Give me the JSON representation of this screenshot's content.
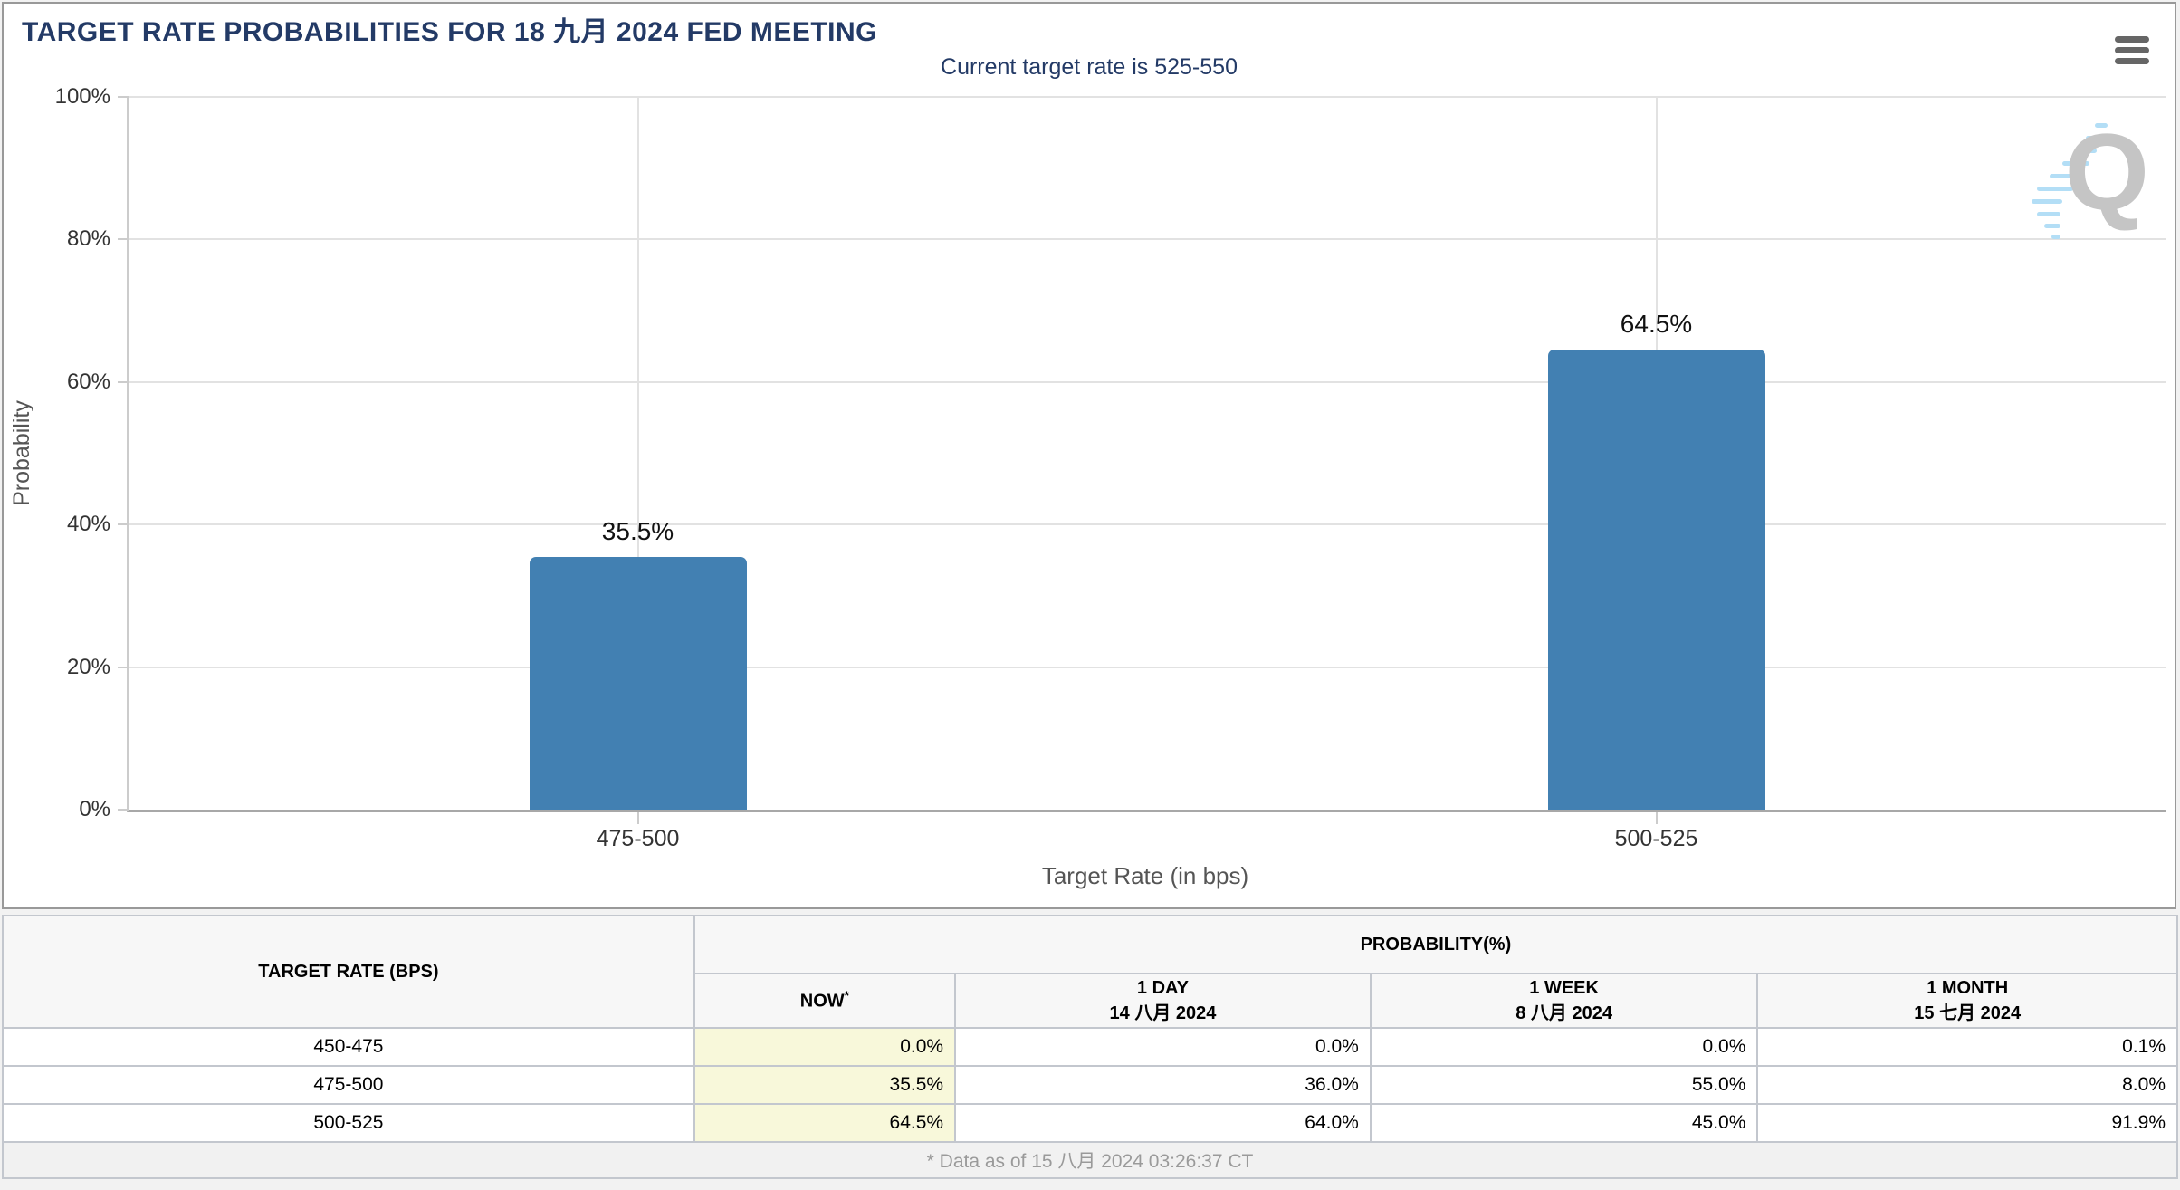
{
  "header": {
    "title": "TARGET RATE PROBABILITIES FOR 18 九月 2024 FED MEETING"
  },
  "chart_data": {
    "type": "bar",
    "title": "Current target rate is 525-550",
    "categories": [
      "475-500",
      "500-525"
    ],
    "values": [
      35.5,
      64.5
    ],
    "bar_labels": [
      "35.5%",
      "64.5%"
    ],
    "xlabel": "Target Rate (in bps)",
    "ylabel": "Probability",
    "ylim": [
      0,
      100
    ],
    "yticks": [
      "0%",
      "20%",
      "40%",
      "60%",
      "80%",
      "100%"
    ],
    "grid": true,
    "legend": "none",
    "bar_color": "#4280b2"
  },
  "watermark": {
    "letter": "Q"
  },
  "table": {
    "col1_header": "TARGET RATE (BPS)",
    "group_header": "PROBABILITY(%)",
    "subheaders": [
      {
        "label": "NOW",
        "sup": "*",
        "date": ""
      },
      {
        "label": "1 DAY",
        "date": "14 八月 2024"
      },
      {
        "label": "1 WEEK",
        "date": "8 八月 2024"
      },
      {
        "label": "1 MONTH",
        "date": "15 七月 2024"
      }
    ],
    "rows": [
      {
        "rate": "450-475",
        "now": "0.0%",
        "day": "0.0%",
        "week": "0.0%",
        "month": "0.1%"
      },
      {
        "rate": "475-500",
        "now": "35.5%",
        "day": "36.0%",
        "week": "55.0%",
        "month": "8.0%"
      },
      {
        "rate": "500-525",
        "now": "64.5%",
        "day": "64.0%",
        "week": "45.0%",
        "month": "91.9%"
      }
    ],
    "footnote": "* Data as of 15 八月 2024 03:26:37 CT"
  },
  "colors": {
    "title_navy": "#233a66",
    "bar_blue": "#4280b2",
    "now_column_yellow": "#f8f8da",
    "panel_border": "#999999",
    "footer_text": "#9a9a9a"
  }
}
